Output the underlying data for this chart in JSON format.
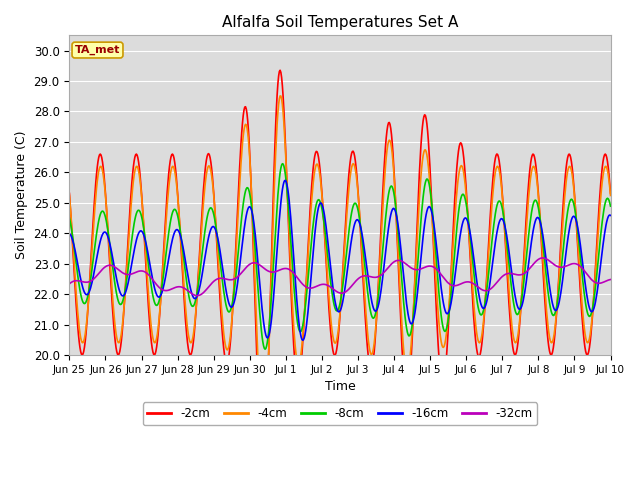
{
  "title": "Alfalfa Soil Temperatures Set A",
  "xlabel": "Time",
  "ylabel": "Soil Temperature (C)",
  "ylim": [
    20.0,
    30.5
  ],
  "yticks": [
    20.0,
    21.0,
    22.0,
    23.0,
    24.0,
    25.0,
    26.0,
    27.0,
    28.0,
    29.0,
    30.0
  ],
  "bg_color": "#dcdcdc",
  "fig_color": "#ffffff",
  "legend_labels": [
    "-2cm",
    "-4cm",
    "-8cm",
    "-16cm",
    "-32cm"
  ],
  "legend_colors": [
    "#ff0000",
    "#ff8800",
    "#00cc00",
    "#0000ff",
    "#bb00bb"
  ],
  "ta_met_box_color": "#ffffaa",
  "ta_met_text_color": "#990000",
  "x_tick_labels": [
    "Jun 25",
    "Jun 26",
    "Jun 27",
    "Jun 28",
    "Jun 29",
    "Jun 30",
    "Jul 1",
    "Jul 2",
    "Jul 3",
    "Jul 4",
    "Jul 5",
    "Jul 6",
    "Jul 7",
    "Jul 8",
    "Jul 9",
    "Jul 10"
  ],
  "grid_color": "#ffffff",
  "line_width": 1.2,
  "n_days": 15,
  "samples_per_day": 48
}
